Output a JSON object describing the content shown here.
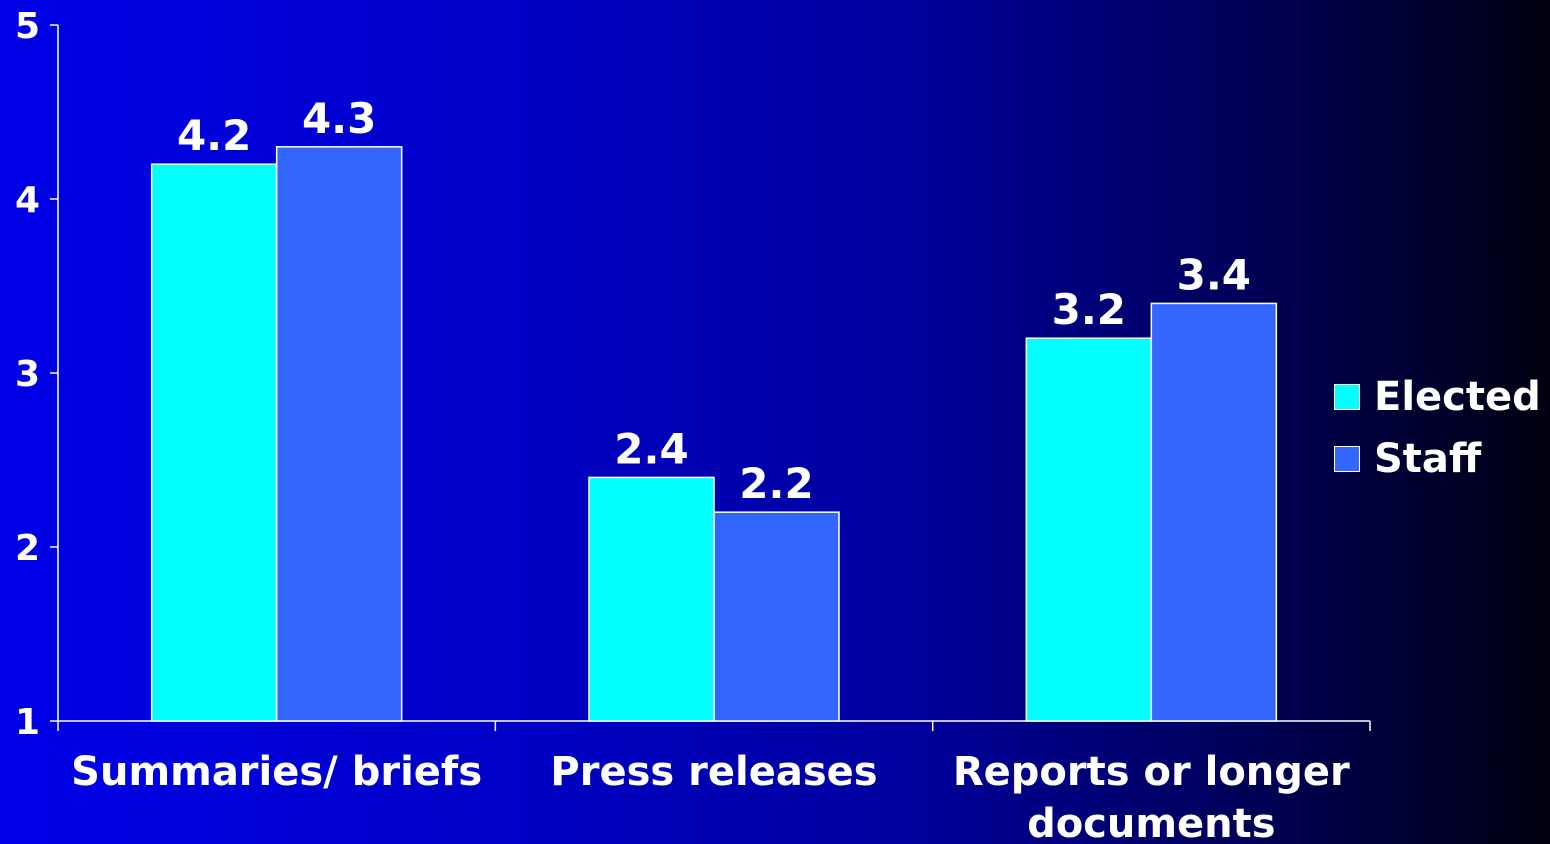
{
  "chart_data": {
    "type": "bar",
    "title": "",
    "xlabel": "",
    "ylabel": "",
    "ylim": [
      1,
      5
    ],
    "yticks": [
      "1",
      "2",
      "3",
      "4",
      "5"
    ],
    "categories": [
      [
        "Summaries/ briefs"
      ],
      [
        "Press releases"
      ],
      [
        "Reports or longer",
        "documents"
      ]
    ],
    "series": [
      {
        "name": "Elected",
        "color": "#00ffff",
        "values": [
          4.2,
          2.4,
          3.2
        ],
        "labels": [
          "4.2",
          "2.4",
          "3.2"
        ]
      },
      {
        "name": "Staff",
        "color": "#3366ff",
        "values": [
          4.3,
          2.2,
          3.4
        ],
        "labels": [
          "4.3",
          "2.2",
          "3.4"
        ]
      }
    ],
    "grid": false,
    "legend_position": "right"
  }
}
